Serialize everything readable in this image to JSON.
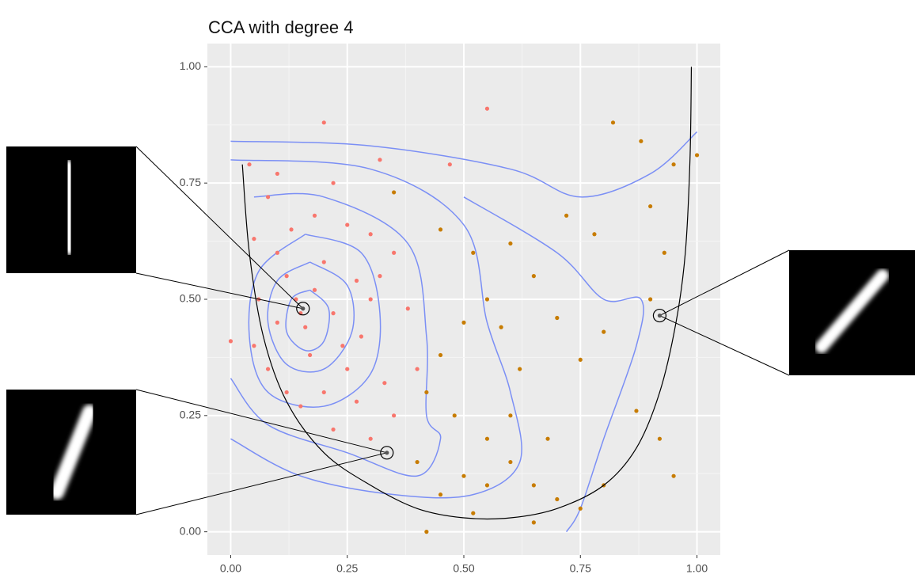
{
  "chart_data": {
    "type": "scatter",
    "title": "CCA with degree 4",
    "xlim": [
      -0.05,
      1.05
    ],
    "ylim": [
      -0.05,
      1.05
    ],
    "xticks": [
      {
        "value": 0,
        "label": "0.00"
      },
      0.25,
      {
        "value": 0.5,
        "label": "0.50"
      },
      0.75,
      {
        "value": 1,
        "label": "1.00"
      }
    ],
    "yticks": [
      {
        "value": 0,
        "label": "0.00"
      },
      0.25,
      {
        "value": 0.5,
        "label": "0.50"
      },
      0.75,
      {
        "value": 1,
        "label": "1.00"
      }
    ],
    "grid": true,
    "minor_grid": true,
    "series": [
      {
        "color": "#f8766d",
        "x": [
          0.05,
          0.08,
          0.1,
          0.12,
          0.14,
          0.15,
          0.16,
          0.18,
          0.2,
          0.22,
          0.24,
          0.1,
          0.06,
          0.05,
          0.08,
          0.12,
          0.15,
          0.2,
          0.25,
          0.28,
          0.3,
          0.32,
          0.35,
          0.3,
          0.25,
          0.18,
          0.13,
          0.2,
          0.32,
          0.04,
          0.1,
          0.22,
          0.27,
          0.33,
          0.22,
          0.3,
          0.35,
          0.4,
          0.0,
          0.17,
          0.55,
          0.47,
          0.38,
          0.27
        ],
        "y": [
          0.63,
          0.72,
          0.6,
          0.55,
          0.5,
          0.47,
          0.44,
          0.52,
          0.58,
          0.47,
          0.4,
          0.45,
          0.5,
          0.4,
          0.35,
          0.3,
          0.27,
          0.3,
          0.35,
          0.42,
          0.5,
          0.55,
          0.6,
          0.64,
          0.66,
          0.68,
          0.65,
          0.88,
          0.8,
          0.79,
          0.77,
          0.75,
          0.28,
          0.32,
          0.22,
          0.2,
          0.25,
          0.35,
          0.41,
          0.38,
          0.91,
          0.79,
          0.48,
          0.54
        ]
      },
      {
        "color": "#c77c02",
        "x": [
          0.35,
          0.45,
          0.52,
          0.6,
          0.65,
          0.55,
          0.5,
          0.45,
          0.42,
          0.48,
          0.55,
          0.6,
          0.65,
          0.7,
          0.55,
          0.5,
          0.45,
          0.4,
          0.62,
          0.7,
          0.75,
          0.8,
          0.78,
          0.82,
          0.88,
          0.9,
          0.93,
          0.95,
          1.0,
          0.9,
          0.87,
          0.92,
          0.95,
          0.8,
          0.75,
          0.65,
          0.52,
          0.42,
          0.68,
          0.6,
          0.72,
          0.58
        ],
        "y": [
          0.73,
          0.65,
          0.6,
          0.62,
          0.55,
          0.5,
          0.45,
          0.38,
          0.3,
          0.25,
          0.2,
          0.15,
          0.1,
          0.07,
          0.1,
          0.12,
          0.08,
          0.15,
          0.35,
          0.46,
          0.37,
          0.43,
          0.64,
          0.88,
          0.84,
          0.7,
          0.6,
          0.79,
          0.81,
          0.5,
          0.26,
          0.2,
          0.12,
          0.1,
          0.05,
          0.02,
          0.04,
          0.0,
          0.2,
          0.25,
          0.68,
          0.44
        ]
      }
    ],
    "curve": {
      "color": "#000000",
      "x": [
        0.025,
        0.04,
        0.07,
        0.12,
        0.2,
        0.3,
        0.4,
        0.5,
        0.6,
        0.7,
        0.8,
        0.87,
        0.92,
        0.955,
        0.975,
        0.985,
        0.988
      ],
      "y": [
        0.79,
        0.6,
        0.42,
        0.28,
        0.17,
        0.1,
        0.05,
        0.03,
        0.03,
        0.05,
        0.1,
        0.18,
        0.3,
        0.45,
        0.6,
        0.8,
        1.0
      ]
    },
    "contour_color": "#7b8ff5",
    "contours": [
      {
        "x": [
          0.17,
          0.21,
          0.2,
          0.16,
          0.12,
          0.13,
          0.17
        ],
        "y": [
          0.52,
          0.48,
          0.41,
          0.39,
          0.43,
          0.5,
          0.52
        ]
      },
      {
        "x": [
          0.17,
          0.25,
          0.26,
          0.2,
          0.12,
          0.08,
          0.1,
          0.17
        ],
        "y": [
          0.58,
          0.53,
          0.43,
          0.35,
          0.36,
          0.45,
          0.54,
          0.58
        ]
      },
      {
        "x": [
          0.16,
          0.28,
          0.32,
          0.3,
          0.2,
          0.08,
          0.04,
          0.06,
          0.16
        ],
        "y": [
          0.64,
          0.6,
          0.47,
          0.34,
          0.27,
          0.3,
          0.42,
          0.56,
          0.64
        ]
      },
      {
        "x": [
          0.05,
          0.2,
          0.38,
          0.42,
          0.42,
          0.45,
          0.4,
          0.25,
          0.08,
          0.0
        ],
        "y": [
          0.72,
          0.72,
          0.62,
          0.42,
          0.25,
          0.2,
          0.12,
          0.17,
          0.23,
          0.33
        ]
      },
      {
        "x": [
          0.0,
          0.3,
          0.5,
          0.55,
          0.6,
          0.62,
          0.52,
          0.35,
          0.15,
          0.0
        ],
        "y": [
          0.8,
          0.78,
          0.66,
          0.45,
          0.3,
          0.15,
          0.08,
          0.08,
          0.12,
          0.2
        ]
      },
      {
        "x": [
          0.0,
          0.3,
          0.6,
          0.75,
          0.9,
          1.0
        ],
        "y": [
          0.84,
          0.83,
          0.78,
          0.72,
          0.77,
          0.86
        ]
      },
      {
        "x": [
          0.5,
          0.7,
          0.8,
          0.88,
          0.87,
          0.8,
          0.75,
          0.72
        ],
        "y": [
          0.72,
          0.6,
          0.5,
          0.5,
          0.4,
          0.2,
          0.05,
          0.0
        ]
      }
    ],
    "highlighted": {
      "x": [
        0.155,
        0.335,
        0.92
      ],
      "y": [
        0.48,
        0.17,
        0.465
      ]
    }
  }
}
